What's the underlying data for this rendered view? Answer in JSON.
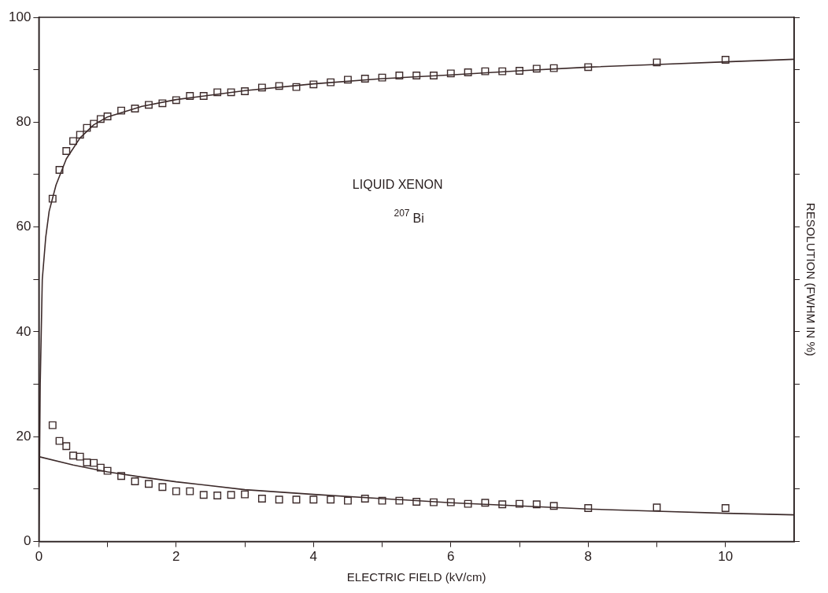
{
  "chart_data": {
    "type": "scatter",
    "xlabel": "ELECTRIC FIELD (kV/cm)",
    "y2label": "RESOLUTION (FWHM IN %)",
    "annotations": [
      "LIQUID XENON",
      "$^{207}$Bi"
    ],
    "xlim": [
      0,
      11
    ],
    "xticks": [
      0,
      {
        "value": 1,
        "label": null
      },
      2,
      {
        "value": 3,
        "label": null
      },
      4,
      {
        "value": 5,
        "label": null
      },
      6,
      {
        "value": 7,
        "label": null
      },
      8,
      {
        "value": 9,
        "label": null
      },
      10
    ],
    "ylim": [
      0,
      100
    ],
    "yticks": [
      0,
      {
        "value": 10,
        "label": null
      },
      20,
      {
        "value": 30,
        "label": null
      },
      40,
      {
        "value": 50,
        "label": null
      },
      60,
      {
        "value": 70,
        "label": null
      },
      80,
      {
        "value": 90,
        "label": null
      },
      100
    ],
    "x": [
      0.2,
      0.3,
      0.4,
      0.5,
      0.6,
      0.7,
      0.8,
      0.9,
      1.0,
      1.2,
      1.4,
      1.6,
      1.8,
      2.0,
      2.2,
      2.4,
      2.6,
      2.8,
      3.0,
      3.25,
      3.5,
      3.75,
      4.0,
      4.25,
      4.5,
      4.75,
      5.0,
      5.25,
      5.5,
      5.75,
      6.0,
      6.25,
      6.5,
      6.75,
      7.0,
      7.25,
      7.5,
      8,
      9,
      10
    ],
    "series": [
      {
        "marker": "square",
        "color": "#3d2b2b",
        "values": [
          65.4,
          70.9,
          74.5,
          76.4,
          77.6,
          78.9,
          79.7,
          80.6,
          81.1,
          82.2,
          82.6,
          83.3,
          83.6,
          84.2,
          85.0,
          85.0,
          85.7,
          85.7,
          85.9,
          86.6,
          86.9,
          86.7,
          87.2,
          87.6,
          88.1,
          88.3,
          88.5,
          88.9,
          88.9,
          88.9,
          89.3,
          89.5,
          89.7,
          89.7,
          89.8,
          90.2,
          90.3,
          90.5,
          91.4,
          91.9
        ]
      },
      {
        "type": "line",
        "marker": "none",
        "color": "#3d2b2b",
        "x": [
          0,
          0.02,
          0.05,
          0.1,
          0.15,
          0.25,
          0.4,
          0.6,
          0.8,
          1,
          1.5,
          2,
          3,
          4,
          5,
          6,
          7,
          8,
          9,
          10,
          11
        ],
        "values": [
          0,
          30,
          50,
          58,
          63,
          68,
          73,
          77,
          79.5,
          81,
          83,
          84.3,
          86,
          87.3,
          88.3,
          89,
          89.8,
          90.5,
          91,
          91.5,
          92
        ]
      },
      {
        "marker": "square",
        "color": "#3d2b2b",
        "values": [
          22.2,
          19.2,
          18.2,
          16.4,
          16.2,
          15.1,
          15.0,
          14.1,
          13.5,
          12.5,
          11.5,
          11.0,
          10.4,
          9.6,
          9.6,
          8.9,
          8.8,
          8.9,
          9.0,
          8.2,
          8.0,
          8.0,
          8.0,
          8.0,
          7.8,
          8.2,
          7.8,
          7.8,
          7.6,
          7.5,
          7.5,
          7.2,
          7.4,
          7.1,
          7.2,
          7.1,
          6.8,
          6.4,
          6.5,
          6.4
        ]
      },
      {
        "type": "line",
        "marker": "none",
        "color": "#3d2b2b",
        "x": [
          0,
          0.5,
          1,
          1.5,
          2,
          3,
          4,
          5,
          6,
          7,
          8,
          9,
          10,
          11
        ],
        "values": [
          16.2,
          14.6,
          13.3,
          12.3,
          11.4,
          9.9,
          9.0,
          8.2,
          7.4,
          6.8,
          6.2,
          5.8,
          5.4,
          5.1
        ]
      }
    ]
  }
}
